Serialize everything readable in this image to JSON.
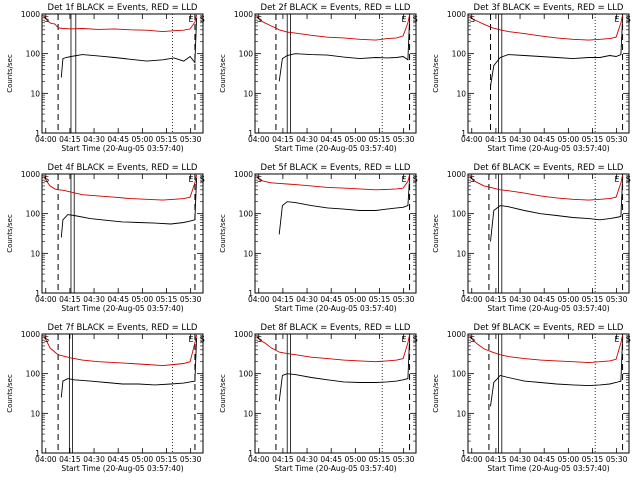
{
  "chart_data": [
    {
      "type": "line",
      "title": "Det 1f BLACK = Events, RED = LLD",
      "xlabel": "Start Time (20-Aug-05 03:57:40)",
      "ylabel": "Counts/sec",
      "x_ticks": [
        "04:00",
        "04:15",
        "04:30",
        "04:45",
        "05:00",
        "05:15",
        "05:30"
      ],
      "y_ticks": [
        "1",
        "10",
        "100",
        "1000"
      ],
      "yscale": "log",
      "ylim": [
        1,
        1000
      ],
      "xlim_minutes": [
        0,
        100
      ],
      "series": [
        {
          "name": "Events",
          "color": "#000000",
          "x_minutes": [
            12,
            13,
            15,
            18,
            25,
            35,
            45,
            55,
            65,
            75,
            82,
            88,
            92,
            95,
            96
          ],
          "values": [
            25,
            75,
            80,
            85,
            95,
            88,
            80,
            72,
            65,
            70,
            78,
            65,
            85,
            60,
            800
          ]
        },
        {
          "name": "LLD",
          "color": "#cc0000",
          "x_minutes": [
            1,
            3,
            5,
            6,
            8,
            10,
            13,
            18,
            25,
            35,
            45,
            55,
            65,
            75,
            82,
            88,
            92,
            95,
            96
          ],
          "values": [
            900,
            700,
            600,
            580,
            560,
            450,
            430,
            420,
            430,
            410,
            420,
            400,
            390,
            360,
            380,
            390,
            420,
            620,
            950
          ]
        }
      ],
      "markers": {
        "dashed_long": [
          10,
          95
        ],
        "solid": [
          18,
          21
        ],
        "dotted": [
          81
        ],
        "labels": {
          "S": 0,
          "E": 91,
          "S2": 98
        }
      }
    },
    {
      "type": "line",
      "title": "Det 2f BLACK = Events, RED = LLD",
      "xlabel": "Start Time (20-Aug-05 03:57:40)",
      "ylabel": "Counts/sec",
      "x_ticks": [
        "04:00",
        "04:15",
        "04:30",
        "04:45",
        "05:00",
        "05:15",
        "05:30"
      ],
      "y_ticks": [
        "1",
        "10",
        "100",
        "1000"
      ],
      "yscale": "log",
      "ylim": [
        1,
        1000
      ],
      "xlim_minutes": [
        0,
        100
      ],
      "series": [
        {
          "name": "Events",
          "color": "#000000",
          "x_minutes": [
            15,
            17,
            20,
            25,
            35,
            45,
            55,
            65,
            75,
            82,
            88,
            92,
            95,
            96
          ],
          "values": [
            20,
            75,
            90,
            100,
            95,
            92,
            82,
            75,
            80,
            78,
            80,
            85,
            70,
            800
          ]
        },
        {
          "name": "LLD",
          "color": "#cc0000",
          "x_minutes": [
            1,
            3,
            6,
            10,
            15,
            20,
            25,
            35,
            45,
            55,
            65,
            75,
            82,
            88,
            92,
            95,
            96
          ],
          "values": [
            900,
            700,
            600,
            500,
            400,
            350,
            330,
            290,
            260,
            250,
            230,
            220,
            240,
            250,
            280,
            600,
            950
          ]
        }
      ],
      "markers": {
        "dashed_long": [
          13,
          96
        ],
        "solid": [
          20,
          22
        ],
        "dotted": [
          79
        ],
        "labels": {
          "S": 0,
          "E": 91,
          "S2": 98
        }
      }
    },
    {
      "type": "line",
      "title": "Det 3f BLACK = Events, RED = LLD",
      "xlabel": "Start Time (20-Aug-05 03:57:40)",
      "ylabel": "Counts/sec",
      "x_ticks": [
        "04:00",
        "04:15",
        "04:30",
        "04:45",
        "05:00",
        "05:15",
        "05:30"
      ],
      "y_ticks": [
        "1",
        "10",
        "100",
        "1000"
      ],
      "yscale": "log",
      "ylim": [
        1,
        1000
      ],
      "xlim_minutes": [
        0,
        100
      ],
      "series": [
        {
          "name": "Events",
          "color": "#000000",
          "x_minutes": [
            14,
            16,
            20,
            25,
            35,
            45,
            55,
            65,
            75,
            82,
            88,
            92,
            95,
            96
          ],
          "values": [
            15,
            50,
            80,
            95,
            90,
            85,
            80,
            75,
            80,
            80,
            90,
            85,
            95,
            800
          ]
        },
        {
          "name": "LLD",
          "color": "#cc0000",
          "x_minutes": [
            1,
            3,
            6,
            10,
            15,
            20,
            25,
            35,
            45,
            55,
            65,
            75,
            82,
            88,
            92,
            95,
            96
          ],
          "values": [
            900,
            750,
            650,
            550,
            450,
            400,
            360,
            320,
            280,
            250,
            230,
            220,
            230,
            240,
            260,
            600,
            950
          ]
        }
      ],
      "markers": {
        "dashed_long": [
          14,
          96
        ],
        "solid": [
          19,
          21
        ],
        "dotted": [
          79
        ],
        "labels": {
          "S": 0,
          "E": 91,
          "S2": 98
        }
      }
    },
    {
      "type": "line",
      "title": "Det 4f BLACK = Events, RED = LLD",
      "xlabel": "Start Time (20-Aug-05 03:57:40)",
      "ylabel": "Counts/sec",
      "x_ticks": [
        "04:00",
        "04:15",
        "04:30",
        "04:45",
        "05:00",
        "05:15",
        "05:30"
      ],
      "y_ticks": [
        "1",
        "10",
        "100",
        "1000"
      ],
      "yscale": "log",
      "ylim": [
        1,
        1000
      ],
      "xlim_minutes": [
        0,
        100
      ],
      "series": [
        {
          "name": "Events",
          "color": "#000000",
          "x_minutes": [
            12,
            13,
            16,
            20,
            30,
            40,
            50,
            60,
            70,
            80,
            88,
            92,
            95,
            96
          ],
          "values": [
            25,
            70,
            95,
            90,
            75,
            68,
            62,
            60,
            58,
            55,
            60,
            65,
            70,
            800
          ]
        },
        {
          "name": "LLD",
          "color": "#cc0000",
          "x_minutes": [
            1,
            3,
            5,
            8,
            10,
            13,
            18,
            25,
            35,
            45,
            55,
            65,
            75,
            82,
            88,
            92,
            95,
            96
          ],
          "values": [
            900,
            650,
            500,
            420,
            400,
            390,
            350,
            300,
            280,
            260,
            240,
            230,
            220,
            230,
            240,
            260,
            600,
            950
          ]
        }
      ],
      "markers": {
        "dashed_long": [
          10,
          95
        ],
        "solid": [
          18,
          20
        ],
        "dotted": [],
        "labels": {
          "S": 0,
          "E": 91,
          "S2": 98
        }
      }
    },
    {
      "type": "line",
      "title": "Det 5f BLACK = Events, RED = LLD",
      "xlabel": "Start Time (20-Aug-05 03:57:40)",
      "ylabel": "Counts/sec",
      "x_ticks": [
        "04:00",
        "04:15",
        "04:30",
        "04:45",
        "05:00",
        "05:15",
        "05:30"
      ],
      "y_ticks": [
        "1",
        "10",
        "100",
        "1000"
      ],
      "yscale": "log",
      "ylim": [
        1,
        1000
      ],
      "xlim_minutes": [
        0,
        100
      ],
      "series": [
        {
          "name": "Events",
          "color": "#000000",
          "x_minutes": [
            15,
            17,
            20,
            25,
            35,
            45,
            55,
            65,
            75,
            82,
            88,
            92,
            95,
            96
          ],
          "values": [
            30,
            160,
            200,
            190,
            160,
            140,
            130,
            120,
            120,
            130,
            140,
            145,
            160,
            800
          ]
        },
        {
          "name": "LLD",
          "color": "#cc0000",
          "x_minutes": [
            1,
            3,
            6,
            10,
            15,
            20,
            25,
            35,
            45,
            55,
            65,
            75,
            82,
            88,
            92,
            95,
            96
          ],
          "values": [
            900,
            700,
            650,
            600,
            580,
            560,
            540,
            500,
            460,
            440,
            420,
            400,
            410,
            420,
            440,
            650,
            950
          ]
        }
      ],
      "markers": {
        "dashed_long": [
          96
        ],
        "solid": [],
        "dotted": [],
        "labels": {
          "S": 0,
          "E": 91,
          "S2": 98
        }
      }
    },
    {
      "type": "line",
      "title": "Det 6f BLACK = Events, RED = LLD",
      "xlabel": "Start Time (20-Aug-05 03:57:40)",
      "ylabel": "Counts/sec",
      "x_ticks": [
        "04:00",
        "04:15",
        "04:30",
        "04:45",
        "05:00",
        "05:15",
        "05:30"
      ],
      "y_ticks": [
        "1",
        "10",
        "100",
        "1000"
      ],
      "yscale": "log",
      "ylim": [
        1,
        1000
      ],
      "xlim_minutes": [
        0,
        100
      ],
      "series": [
        {
          "name": "Events",
          "color": "#000000",
          "x_minutes": [
            14,
            16,
            20,
            25,
            35,
            45,
            55,
            65,
            75,
            82,
            88,
            92,
            95,
            96
          ],
          "values": [
            20,
            120,
            160,
            150,
            120,
            100,
            90,
            80,
            75,
            70,
            75,
            80,
            85,
            800
          ]
        },
        {
          "name": "LLD",
          "color": "#cc0000",
          "x_minutes": [
            1,
            3,
            6,
            10,
            15,
            20,
            25,
            35,
            45,
            55,
            65,
            75,
            82,
            88,
            92,
            95,
            96
          ],
          "values": [
            900,
            700,
            600,
            500,
            450,
            400,
            380,
            330,
            280,
            250,
            230,
            220,
            230,
            240,
            260,
            600,
            950
          ]
        }
      ],
      "markers": {
        "dashed_long": [
          13,
          96
        ],
        "solid": [
          19,
          21
        ],
        "dotted": [
          79
        ],
        "labels": {
          "S": 0,
          "E": 91,
          "S2": 98
        }
      }
    },
    {
      "type": "line",
      "title": "Det 7f BLACK = Events, RED = LLD",
      "xlabel": "Start Time (20-Aug-05 03:57:40)",
      "ylabel": "Counts/sec",
      "x_ticks": [
        "04:00",
        "04:15",
        "04:30",
        "04:45",
        "05:00",
        "05:15",
        "05:30"
      ],
      "y_ticks": [
        "1",
        "10",
        "100",
        "1000"
      ],
      "yscale": "log",
      "ylim": [
        1,
        1000
      ],
      "xlim_minutes": [
        0,
        100
      ],
      "series": [
        {
          "name": "Events",
          "color": "#000000",
          "x_minutes": [
            12,
            13,
            16,
            20,
            30,
            40,
            50,
            60,
            70,
            80,
            88,
            92,
            95,
            96
          ],
          "values": [
            25,
            65,
            75,
            70,
            65,
            60,
            55,
            55,
            52,
            55,
            58,
            62,
            65,
            800
          ]
        },
        {
          "name": "LLD",
          "color": "#cc0000",
          "x_minutes": [
            1,
            3,
            5,
            8,
            10,
            13,
            18,
            25,
            35,
            45,
            55,
            65,
            75,
            82,
            88,
            92,
            95,
            96
          ],
          "values": [
            900,
            650,
            450,
            350,
            300,
            280,
            250,
            220,
            200,
            190,
            180,
            170,
            160,
            170,
            180,
            200,
            600,
            950
          ]
        }
      ],
      "markers": {
        "dashed_long": [
          10,
          95
        ],
        "solid": [
          17,
          19
        ],
        "dotted": [
          81
        ],
        "labels": {
          "S": 0,
          "E": 91,
          "S2": 98
        }
      }
    },
    {
      "type": "line",
      "title": "Det 8f BLACK = Events, RED = LLD",
      "xlabel": "Start Time (20-Aug-05 03:57:40)",
      "ylabel": "Counts/sec",
      "x_ticks": [
        "04:00",
        "04:15",
        "04:30",
        "04:45",
        "05:00",
        "05:15",
        "05:30"
      ],
      "y_ticks": [
        "1",
        "10",
        "100",
        "1000"
      ],
      "yscale": "log",
      "ylim": [
        1,
        1000
      ],
      "xlim_minutes": [
        0,
        100
      ],
      "series": [
        {
          "name": "Events",
          "color": "#000000",
          "x_minutes": [
            15,
            17,
            20,
            25,
            35,
            45,
            55,
            65,
            75,
            82,
            88,
            92,
            95,
            96
          ],
          "values": [
            20,
            90,
            100,
            95,
            80,
            70,
            62,
            60,
            60,
            62,
            65,
            70,
            75,
            800
          ]
        },
        {
          "name": "LLD",
          "color": "#cc0000",
          "x_minutes": [
            1,
            3,
            6,
            10,
            15,
            20,
            25,
            35,
            45,
            55,
            65,
            75,
            82,
            88,
            92,
            95,
            96
          ],
          "values": [
            900,
            700,
            600,
            450,
            350,
            320,
            300,
            260,
            240,
            220,
            210,
            200,
            210,
            220,
            240,
            600,
            950
          ]
        }
      ],
      "markers": {
        "dashed_long": [
          13,
          96
        ],
        "solid": [
          20,
          22
        ],
        "dotted": [
          79
        ],
        "labels": {
          "S": 0,
          "E": 91,
          "S2": 98
        }
      }
    },
    {
      "type": "line",
      "title": "Det 9f BLACK = Events, RED = LLD",
      "xlabel": "Start Time (20-Aug-05 03:57:40)",
      "ylabel": "Counts/sec",
      "x_ticks": [
        "04:00",
        "04:15",
        "04:30",
        "04:45",
        "05:00",
        "05:15",
        "05:30"
      ],
      "y_ticks": [
        "1",
        "10",
        "100",
        "1000"
      ],
      "yscale": "log",
      "ylim": [
        1,
        1000
      ],
      "xlim_minutes": [
        0,
        100
      ],
      "series": [
        {
          "name": "Events",
          "color": "#000000",
          "x_minutes": [
            14,
            16,
            20,
            25,
            35,
            45,
            55,
            65,
            75,
            82,
            88,
            92,
            95,
            96
          ],
          "values": [
            15,
            60,
            90,
            80,
            65,
            60,
            55,
            52,
            50,
            52,
            55,
            60,
            65,
            800
          ]
        },
        {
          "name": "LLD",
          "color": "#cc0000",
          "x_minutes": [
            1,
            3,
            6,
            10,
            15,
            20,
            25,
            35,
            45,
            55,
            65,
            75,
            82,
            88,
            92,
            95,
            96
          ],
          "values": [
            900,
            700,
            550,
            420,
            350,
            300,
            270,
            240,
            220,
            210,
            200,
            190,
            200,
            210,
            230,
            600,
            950
          ]
        }
      ],
      "markers": {
        "dashed_long": [
          13,
          96
        ],
        "solid": [
          19,
          21
        ],
        "dotted": [
          79
        ],
        "labels": {
          "S": 0,
          "E": 91,
          "S2": 98
        }
      }
    }
  ]
}
